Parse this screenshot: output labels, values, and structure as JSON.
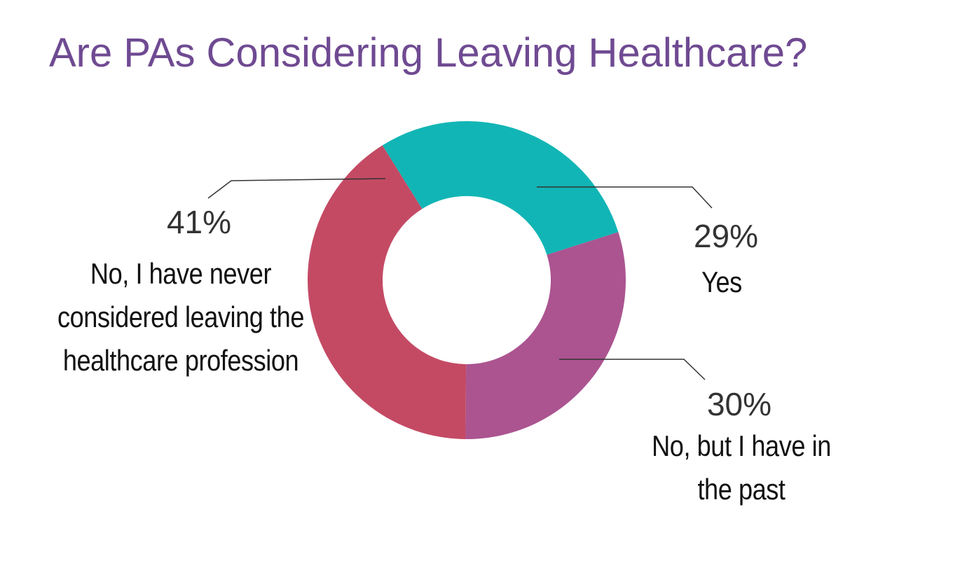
{
  "chart_data": {
    "type": "donut",
    "title": "Are PAs Considering Leaving Healthcare?",
    "categories": [
      "Yes",
      "No, but I have in the past",
      "No, I have never considered leaving the healthcare profession"
    ],
    "values": [
      29,
      30,
      41
    ],
    "value_labels": [
      "29%",
      "30%",
      "41%"
    ],
    "colors": [
      "#12b5b5",
      "#ab5490",
      "#c44a64"
    ]
  }
}
